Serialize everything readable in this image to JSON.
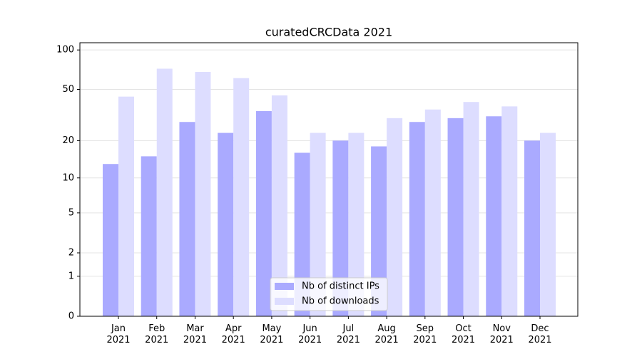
{
  "chart_data": {
    "type": "bar",
    "title": "curatedCRCData 2021",
    "categories": [
      "Jan\n2021",
      "Feb\n2021",
      "Mar\n2021",
      "Apr\n2021",
      "May\n2021",
      "Jun\n2021",
      "Jul\n2021",
      "Aug\n2021",
      "Sep\n2021",
      "Oct\n2021",
      "Nov\n2021",
      "Dec\n2021"
    ],
    "series": [
      {
        "name": "Nb of distinct IPs",
        "color": "#aaaaff",
        "values": [
          13,
          15,
          28,
          23,
          34,
          16,
          20,
          18,
          28,
          30,
          31,
          20
        ]
      },
      {
        "name": "Nb of downloads",
        "color": "#ddddff",
        "values": [
          44,
          72,
          68,
          61,
          45,
          23,
          23,
          30,
          35,
          40,
          37,
          23
        ]
      }
    ],
    "yscale": "log1p",
    "ylim": [
      0,
      113.5
    ],
    "yticks": [
      0,
      1,
      2,
      5,
      10,
      20,
      50,
      100
    ],
    "grid": true,
    "legend": "lower center"
  }
}
